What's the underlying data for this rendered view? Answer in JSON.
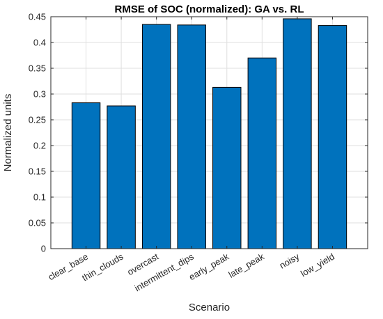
{
  "chart_data": {
    "type": "bar",
    "title": "RMSE of SOC (normalized): GA vs. RL",
    "xlabel": "Scenario",
    "ylabel": "Normalized units",
    "categories": [
      "clear_base",
      "thin_clouds",
      "overcast",
      "intermittent_dips",
      "early_peak",
      "late_peak",
      "noisy",
      "low_yield"
    ],
    "values": [
      0.283,
      0.277,
      0.435,
      0.434,
      0.313,
      0.37,
      0.446,
      0.433
    ],
    "ylim": [
      0,
      0.45
    ],
    "yticks": [
      0,
      0.05,
      0.1,
      0.15,
      0.2,
      0.25,
      0.3,
      0.35,
      0.4,
      0.45
    ],
    "ytick_labels": [
      "0",
      "0.05",
      "0.1",
      "0.15",
      "0.2",
      "0.25",
      "0.3",
      "0.35",
      "0.4",
      "0.45"
    ],
    "grid": true,
    "bar_color": "#0072BD",
    "bar_edge_color": "#000000",
    "grid_color": "#dfdfdf",
    "axis_color": "#262626"
  }
}
